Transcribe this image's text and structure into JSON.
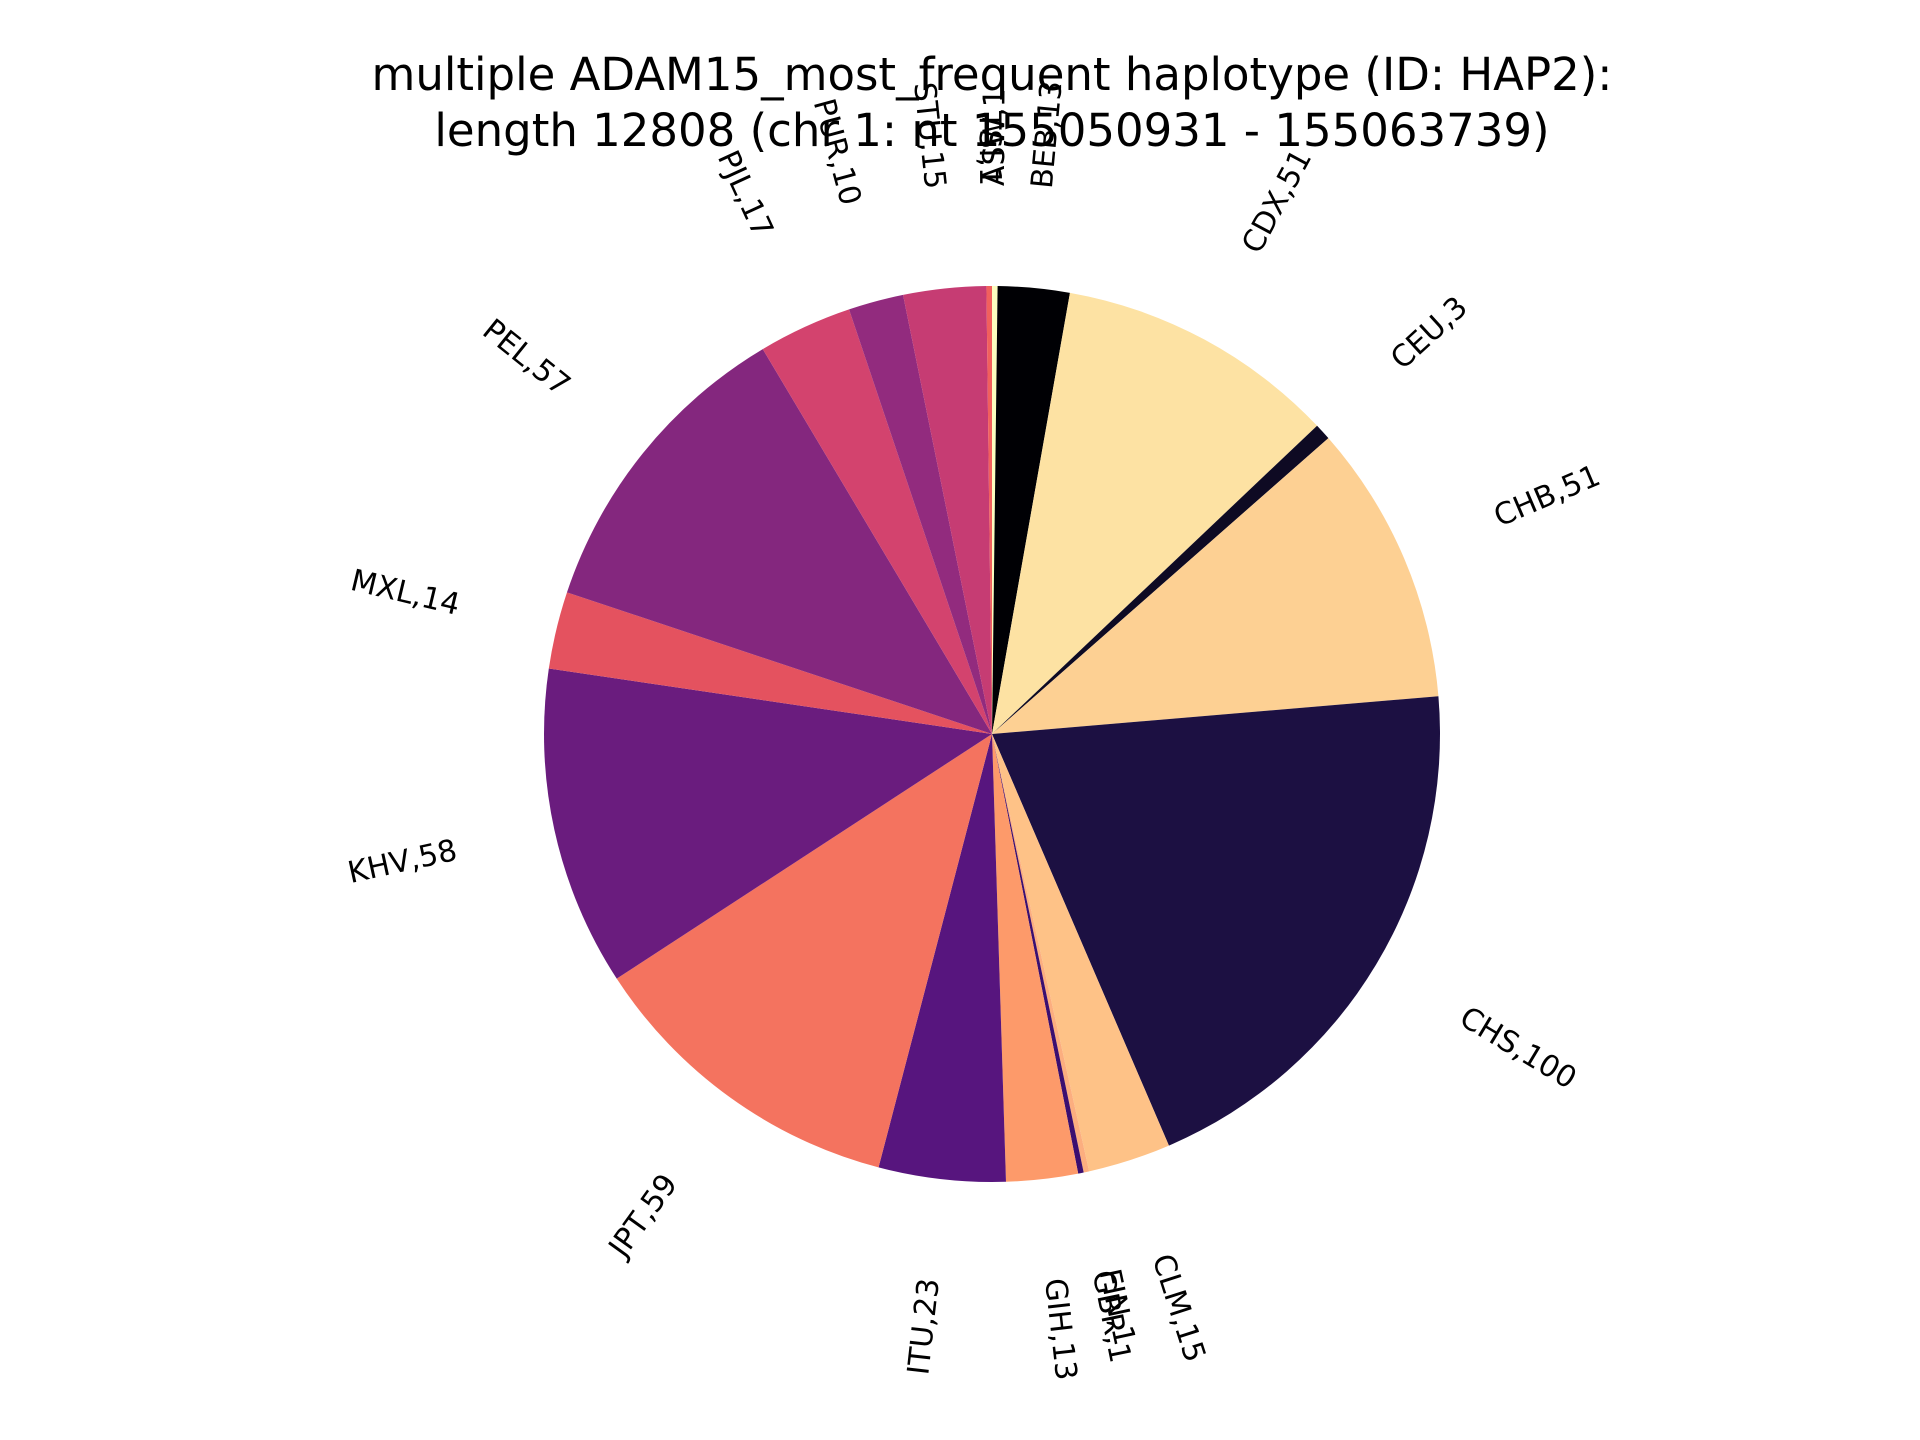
{
  "chart_data": {
    "type": "pie",
    "title_line1": "multiple ADAM15_most_frequent haplotype (ID: HAP2):",
    "title_line2": "length 12808 (chr 1: nt 155050931 - 155063739)",
    "start_angle_deg": 90,
    "direction": "clockwise",
    "slices": [
      {
        "name": "ASW",
        "value": 1,
        "label": "ASW,1",
        "color": "#FCFDBF"
      },
      {
        "name": "BEB",
        "value": 13,
        "label": "BEB,13",
        "color": "#000004"
      },
      {
        "name": "CDX",
        "value": 51,
        "label": "CDX,51",
        "color": "#FDE2A3"
      },
      {
        "name": "CEU",
        "value": 3,
        "label": "CEU,3",
        "color": "#0E0A23"
      },
      {
        "name": "CHB",
        "value": 51,
        "label": "CHB,51",
        "color": "#FDD093"
      },
      {
        "name": "CHS",
        "value": 100,
        "label": "CHS,100",
        "color": "#1C1042"
      },
      {
        "name": "CLM",
        "value": 15,
        "label": "CLM,15",
        "color": "#FEC287"
      },
      {
        "name": "FIN",
        "value": 1,
        "label": "FIN,1",
        "color": "#FCAE7F"
      },
      {
        "name": "GBR",
        "value": 1,
        "label": "GBR,1",
        "color": "#3B0F70"
      },
      {
        "name": "GIH",
        "value": 13,
        "label": "GIH,13",
        "color": "#FD9A6A"
      },
      {
        "name": "ITU",
        "value": 23,
        "label": "ITU,23",
        "color": "#57157E"
      },
      {
        "name": "JPT",
        "value": 59,
        "label": "JPT,59",
        "color": "#F4735F"
      },
      {
        "name": "KHV",
        "value": 58,
        "label": "KHV,58",
        "color": "#6A1C7E"
      },
      {
        "name": "MXL",
        "value": 14,
        "label": "MXL,14",
        "color": "#E4525F"
      },
      {
        "name": "PEL",
        "value": 57,
        "label": "PEL,57",
        "color": "#84277E"
      },
      {
        "name": "PJL",
        "value": 17,
        "label": "PJL,17",
        "color": "#D3436E"
      },
      {
        "name": "PUR",
        "value": 10,
        "label": "PUR,10",
        "color": "#922B7E"
      },
      {
        "name": "STU",
        "value": 15,
        "label": "STU,15",
        "color": "#C63C73"
      },
      {
        "name": "TSI",
        "value": 1,
        "label": "TSI,1",
        "color": "#F1605D"
      }
    ]
  }
}
